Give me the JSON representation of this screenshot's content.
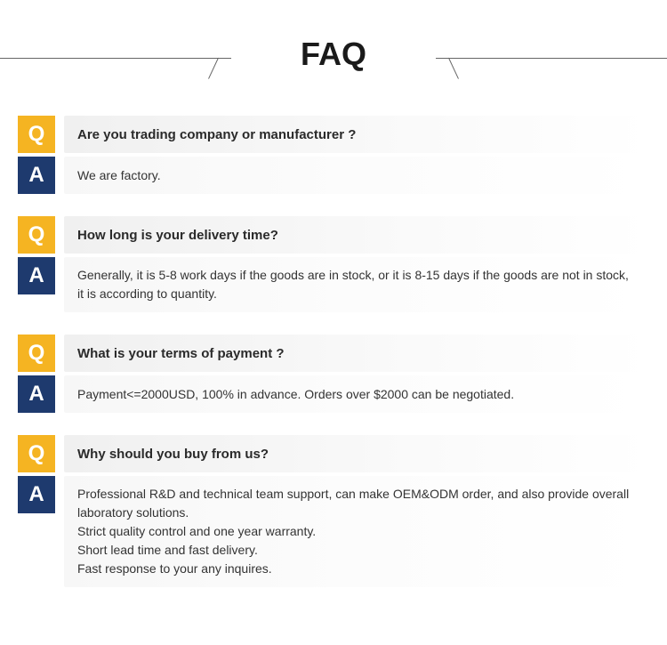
{
  "header": {
    "title": "FAQ"
  },
  "colors": {
    "q_badge_bg": "#f5b422",
    "a_badge_bg": "#1e3a6e",
    "badge_text": "#ffffff",
    "question_text": "#2a2a2a",
    "answer_text": "#333333",
    "header_line": "#666666"
  },
  "badges": {
    "q_label": "Q",
    "a_label": "A"
  },
  "faqs": [
    {
      "question": "Are you trading company or manufacturer ?",
      "answer": "We are factory."
    },
    {
      "question": "How long is your delivery time?",
      "answer": "Generally, it is 5-8 work days if the goods are in stock, or it is 8-15 days if the goods are not in stock, it is according to quantity."
    },
    {
      "question": "What is your terms of payment ?",
      "answer": "Payment<=2000USD, 100% in advance. Orders over $2000 can be negotiated."
    },
    {
      "question": "Why should you buy from us?",
      "answer": "Professional R&D and technical team support, can make OEM&ODM order, and also provide overall laboratory solutions.\nStrict quality control and one year warranty.\nShort lead time and fast delivery.\nFast response to your any inquires."
    }
  ]
}
